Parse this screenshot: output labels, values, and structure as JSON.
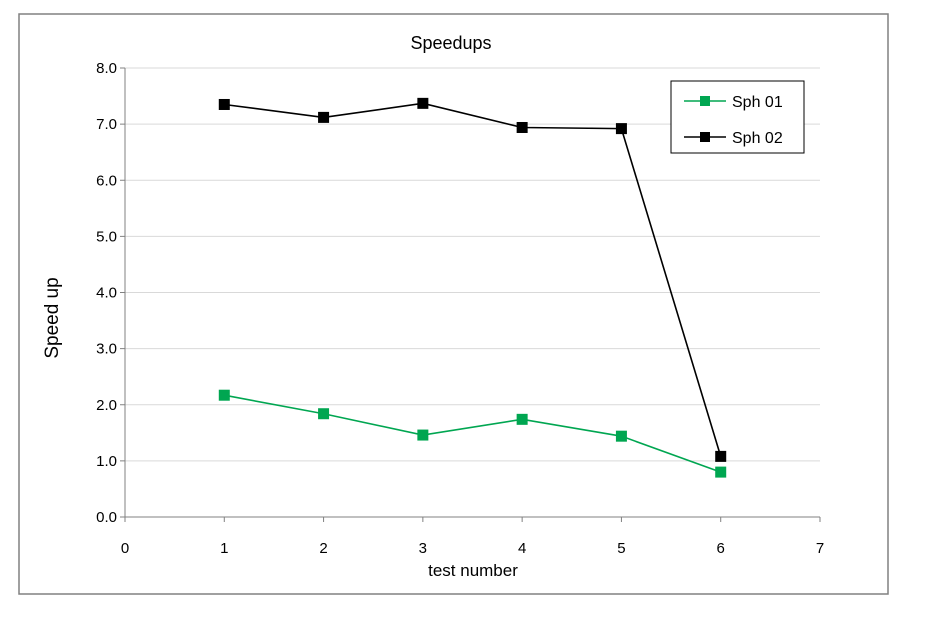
{
  "chart_data": {
    "type": "line",
    "title": "Speedups",
    "xlabel": "test number",
    "ylabel": "Speed up",
    "xlim": [
      0,
      7
    ],
    "ylim": [
      0,
      8
    ],
    "xticks": [
      "0",
      "1",
      "2",
      "3",
      "4",
      "5",
      "6",
      "7"
    ],
    "yticks": [
      "0.0",
      "1.0",
      "2.0",
      "3.0",
      "4.0",
      "5.0",
      "6.0",
      "7.0",
      "8.0"
    ],
    "grid": "horizontal",
    "legend_position": "top-right",
    "x": [
      1,
      2,
      3,
      4,
      5,
      6
    ],
    "series": [
      {
        "name": "Sph 01",
        "color": "#00a651",
        "marker": "square",
        "values": [
          2.17,
          1.84,
          1.46,
          1.74,
          1.44,
          0.8
        ]
      },
      {
        "name": "Sph 02",
        "color": "#000000",
        "marker": "square",
        "values": [
          7.35,
          7.12,
          7.37,
          6.94,
          6.92,
          1.08
        ]
      }
    ]
  }
}
